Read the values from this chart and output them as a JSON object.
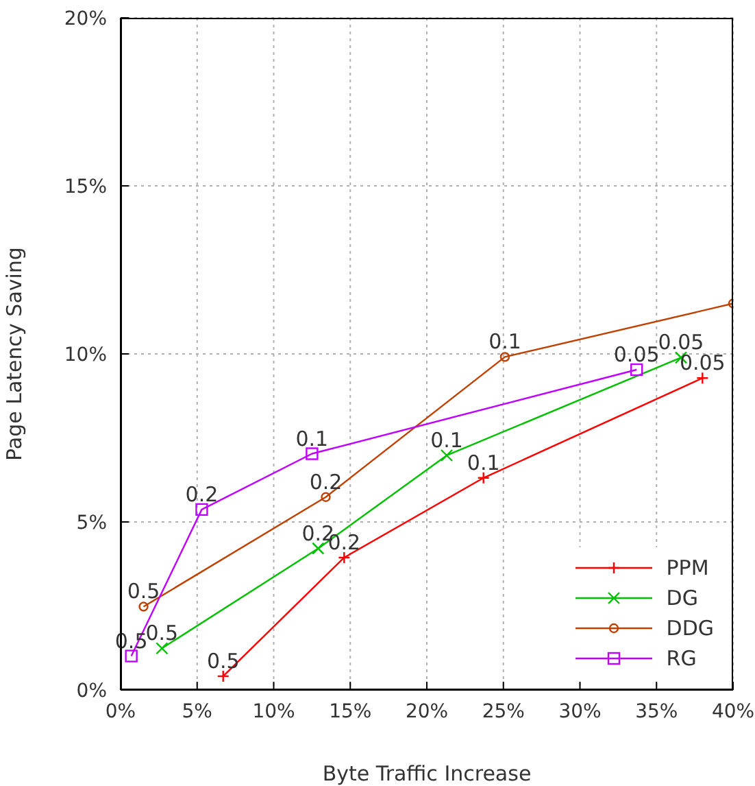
{
  "chart_data": {
    "type": "line",
    "xlabel": "Byte Traffic Increase",
    "ylabel": "Page Latency Saving",
    "xlim": [
      0,
      40
    ],
    "xticks": [
      {
        "value": 0,
        "label": "0%"
      },
      {
        "value": 5,
        "label": "5%"
      },
      {
        "value": 10,
        "label": "10%"
      },
      {
        "value": 15,
        "label": "15%"
      },
      {
        "value": 20,
        "label": "20%"
      },
      {
        "value": 25,
        "label": "25%"
      },
      {
        "value": 30,
        "label": "30%"
      },
      {
        "value": 35,
        "label": "35%"
      },
      {
        "value": 40,
        "label": "40%"
      }
    ],
    "ylim": [
      0,
      20
    ],
    "yticks": [
      {
        "value": 0,
        "label": "0%"
      },
      {
        "value": 5,
        "label": "5%"
      },
      {
        "value": 10,
        "label": "10%"
      },
      {
        "value": 15,
        "label": "15%"
      },
      {
        "value": 20,
        "label": "20%"
      }
    ],
    "grid": true,
    "legend": "bottom right",
    "series": [
      {
        "name": "PPM",
        "color": "#ff0000",
        "marker": "cross",
        "x": [
          6.7,
          14.6,
          23.7,
          38.0
        ],
        "values": [
          0.41,
          3.94,
          6.31,
          9.28
        ]
      },
      {
        "name": "DG",
        "color": "#00c000",
        "marker": "x",
        "x": [
          2.7,
          12.9,
          21.3,
          36.6
        ],
        "values": [
          1.24,
          4.21,
          6.98,
          9.89
        ]
      },
      {
        "name": "DDG",
        "color": "#c04000",
        "marker": "circle",
        "x": [
          1.5,
          13.4,
          25.1,
          40.0
        ],
        "values": [
          2.48,
          5.74,
          9.91,
          11.5
        ]
      },
      {
        "name": "RG",
        "color": "#c000ff",
        "marker": "square",
        "x": [
          0.7,
          5.3,
          12.5,
          33.7
        ],
        "values": [
          1.01,
          5.37,
          7.03,
          9.53
        ]
      }
    ],
    "annotations": [
      {
        "text": "0.5",
        "x": 6.7,
        "y": 0.41
      },
      {
        "text": "0.2",
        "x": 14.6,
        "y": 3.94
      },
      {
        "text": "0.1",
        "x": 23.7,
        "y": 6.31
      },
      {
        "text": "0.05",
        "x": 38.0,
        "y": 9.28
      },
      {
        "text": "0.5",
        "x": 2.7,
        "y": 1.24
      },
      {
        "text": "0.2",
        "x": 12.9,
        "y": 4.21
      },
      {
        "text": "0.1",
        "x": 21.3,
        "y": 6.98
      },
      {
        "text": "0.05",
        "x": 36.6,
        "y": 9.89
      },
      {
        "text": "0.5",
        "x": 1.5,
        "y": 2.48
      },
      {
        "text": "0.2",
        "x": 13.4,
        "y": 5.74
      },
      {
        "text": "0.1",
        "x": 25.1,
        "y": 9.91
      },
      {
        "text": "0.5",
        "x": 0.7,
        "y": 1.01
      },
      {
        "text": "0.2",
        "x": 5.3,
        "y": 5.37
      },
      {
        "text": "0.1",
        "x": 12.5,
        "y": 7.03
      },
      {
        "text": "0.05",
        "x": 33.7,
        "y": 9.53
      }
    ]
  }
}
